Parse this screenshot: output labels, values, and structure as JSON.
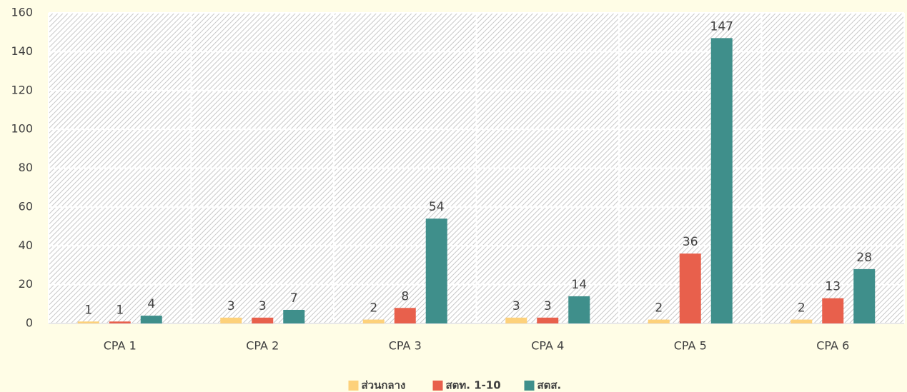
{
  "chart_data": {
    "type": "bar",
    "categories": [
      "CPA 1",
      "CPA 2",
      "CPA 3",
      "CPA 4",
      "CPA 5",
      "CPA 6"
    ],
    "series": [
      {
        "name": "ส่วนกลาง",
        "color": "#fdd17b",
        "values": [
          1,
          3,
          2,
          3,
          2,
          2
        ]
      },
      {
        "name": "สตท. 1-10",
        "color": "#e8604c",
        "values": [
          1,
          3,
          8,
          3,
          36,
          13
        ]
      },
      {
        "name": "สตส.",
        "color": "#3f8f8b",
        "values": [
          4,
          7,
          54,
          14,
          147,
          28
        ]
      }
    ],
    "ylim": [
      0,
      160
    ],
    "yticks": [
      0,
      20,
      40,
      60,
      80,
      100,
      120,
      140,
      160
    ],
    "grid": true,
    "legend": "bottom"
  }
}
